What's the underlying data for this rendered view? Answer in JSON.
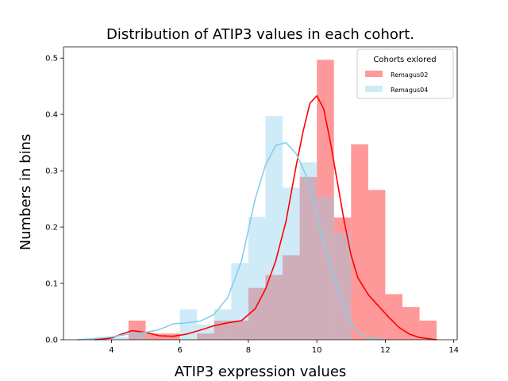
{
  "chart_data": {
    "type": "bar",
    "title": "Distribution of ATIP3 values in each cohort.",
    "xlabel": "ATIP3 expression values",
    "ylabel": "Numbers in bins",
    "xlim": [
      2.6,
      14.1
    ],
    "ylim": [
      0,
      0.52
    ],
    "xticks": [
      4,
      6,
      8,
      10,
      12,
      14
    ],
    "yticks": [
      0.0,
      0.1,
      0.2,
      0.3,
      0.4,
      0.5
    ],
    "grid": false,
    "legend": {
      "title": "Cohorts exlored",
      "placement": "top-right"
    },
    "series": [
      {
        "name": "Remagus02",
        "color": "#ff0000",
        "hist": [
          {
            "x0": 3.5,
            "x1": 4.0,
            "value": 0.0
          },
          {
            "x0": 4.0,
            "x1": 4.5,
            "value": 0.0
          },
          {
            "x0": 4.5,
            "x1": 5.0,
            "value": 0.034
          },
          {
            "x0": 5.0,
            "x1": 5.5,
            "value": 0.011
          },
          {
            "x0": 5.5,
            "x1": 6.0,
            "value": 0.011
          },
          {
            "x0": 6.0,
            "x1": 6.5,
            "value": 0.0
          },
          {
            "x0": 6.5,
            "x1": 7.0,
            "value": 0.011
          },
          {
            "x0": 7.0,
            "x1": 7.5,
            "value": 0.034
          },
          {
            "x0": 7.5,
            "x1": 8.0,
            "value": 0.034
          },
          {
            "x0": 8.0,
            "x1": 8.5,
            "value": 0.092
          },
          {
            "x0": 8.5,
            "x1": 9.0,
            "value": 0.115
          },
          {
            "x0": 9.0,
            "x1": 9.5,
            "value": 0.15
          },
          {
            "x0": 9.5,
            "x1": 10.0,
            "value": 0.289
          },
          {
            "x0": 10.0,
            "x1": 10.5,
            "value": 0.497
          },
          {
            "x0": 10.5,
            "x1": 11.0,
            "value": 0.217
          },
          {
            "x0": 11.0,
            "x1": 11.5,
            "value": 0.347
          },
          {
            "x0": 11.5,
            "x1": 12.0,
            "value": 0.266
          },
          {
            "x0": 12.0,
            "x1": 12.5,
            "value": 0.081
          },
          {
            "x0": 12.5,
            "x1": 13.0,
            "value": 0.058
          },
          {
            "x0": 13.0,
            "x1": 13.5,
            "value": 0.034
          }
        ],
        "kde_x": [
          3.5,
          4.0,
          4.3,
          4.6,
          5.0,
          5.4,
          5.8,
          6.2,
          6.6,
          7.0,
          7.4,
          7.8,
          8.2,
          8.5,
          8.8,
          9.1,
          9.4,
          9.6,
          9.8,
          10.0,
          10.2,
          10.4,
          10.6,
          10.8,
          11.0,
          11.2,
          11.5,
          11.8,
          12.1,
          12.4,
          12.7,
          13.0,
          13.5
        ],
        "kde_y": [
          0.0,
          0.003,
          0.01,
          0.016,
          0.013,
          0.007,
          0.006,
          0.01,
          0.017,
          0.025,
          0.03,
          0.034,
          0.055,
          0.09,
          0.14,
          0.21,
          0.31,
          0.37,
          0.42,
          0.433,
          0.41,
          0.35,
          0.28,
          0.21,
          0.15,
          0.11,
          0.08,
          0.06,
          0.04,
          0.022,
          0.01,
          0.004,
          0.0
        ]
      },
      {
        "name": "Remagus04",
        "color": "#87ceeb",
        "hist": [
          {
            "x0": 3.5,
            "x1": 4.0,
            "value": 0.0
          },
          {
            "x0": 4.0,
            "x1": 4.5,
            "value": 0.005
          },
          {
            "x0": 4.5,
            "x1": 5.0,
            "value": 0.011
          },
          {
            "x0": 5.0,
            "x1": 5.5,
            "value": 0.0
          },
          {
            "x0": 5.5,
            "x1": 6.0,
            "value": 0.0
          },
          {
            "x0": 6.0,
            "x1": 6.5,
            "value": 0.054
          },
          {
            "x0": 6.5,
            "x1": 7.0,
            "value": 0.027
          },
          {
            "x0": 7.0,
            "x1": 7.5,
            "value": 0.054
          },
          {
            "x0": 7.5,
            "x1": 8.0,
            "value": 0.136
          },
          {
            "x0": 8.0,
            "x1": 8.5,
            "value": 0.218
          },
          {
            "x0": 8.5,
            "x1": 9.0,
            "value": 0.397
          },
          {
            "x0": 9.0,
            "x1": 9.5,
            "value": 0.27
          },
          {
            "x0": 9.5,
            "x1": 10.0,
            "value": 0.315
          },
          {
            "x0": 10.0,
            "x1": 10.5,
            "value": 0.254
          },
          {
            "x0": 10.5,
            "x1": 11.0,
            "value": 0.19
          },
          {
            "x0": 11.0,
            "x1": 11.5,
            "value": 0.0
          }
        ],
        "kde_x": [
          3.0,
          3.5,
          4.0,
          4.5,
          5.0,
          5.4,
          5.8,
          6.2,
          6.6,
          7.0,
          7.4,
          7.8,
          8.2,
          8.5,
          8.8,
          9.1,
          9.4,
          9.7,
          10.0,
          10.3,
          10.6,
          10.9,
          11.2,
          11.6,
          12.0
        ],
        "kde_y": [
          0.0,
          0.002,
          0.005,
          0.01,
          0.013,
          0.018,
          0.028,
          0.03,
          0.033,
          0.045,
          0.075,
          0.14,
          0.25,
          0.31,
          0.345,
          0.35,
          0.33,
          0.29,
          0.22,
          0.15,
          0.09,
          0.04,
          0.012,
          0.002,
          0.0
        ]
      }
    ]
  }
}
